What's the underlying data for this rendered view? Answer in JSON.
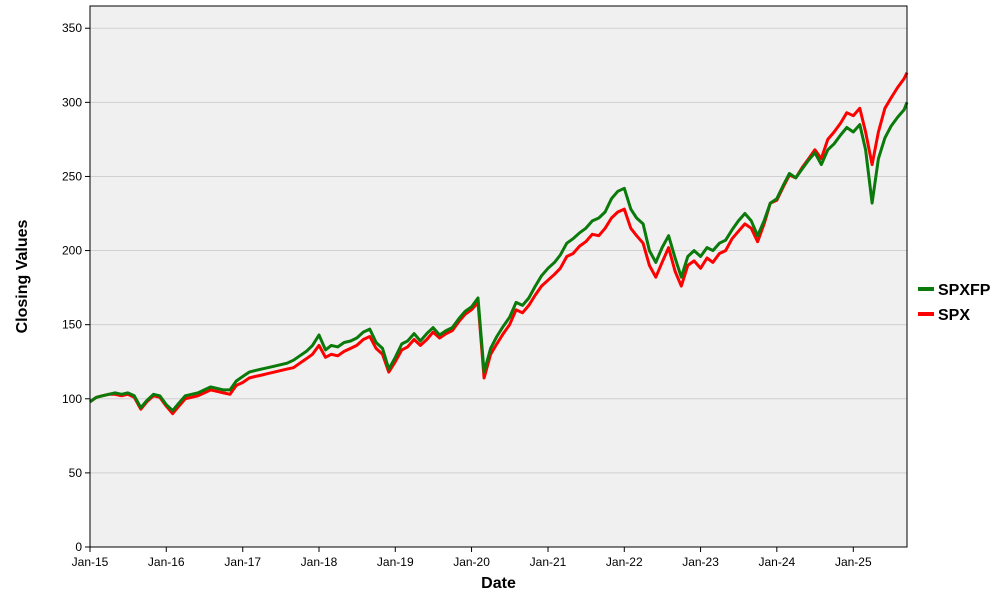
{
  "chart_data": {
    "type": "line",
    "title": "",
    "xlabel": "Date",
    "ylabel": "Closing Values",
    "ylim": [
      0,
      365
    ],
    "xlim": [
      "2015-01-01",
      "2025-09-15"
    ],
    "grid": "horizontal",
    "legend_position": "right",
    "x_ticks": [
      {
        "date": "2015-01-01",
        "label": "Jan-15"
      },
      {
        "date": "2016-01-01",
        "label": "Jan-16"
      },
      {
        "date": "2017-01-01",
        "label": "Jan-17"
      },
      {
        "date": "2018-01-01",
        "label": "Jan-18"
      },
      {
        "date": "2019-01-01",
        "label": "Jan-19"
      },
      {
        "date": "2020-01-01",
        "label": "Jan-20"
      },
      {
        "date": "2021-01-01",
        "label": "Jan-21"
      },
      {
        "date": "2022-01-01",
        "label": "Jan-22"
      },
      {
        "date": "2023-01-01",
        "label": "Jan-23"
      },
      {
        "date": "2024-01-01",
        "label": "Jan-24"
      },
      {
        "date": "2025-01-01",
        "label": "Jan-25"
      }
    ],
    "y_ticks": [
      {
        "value": 0,
        "label": "0"
      },
      {
        "value": 50,
        "label": "50"
      },
      {
        "value": 100,
        "label": "100"
      },
      {
        "value": 150,
        "label": "150"
      },
      {
        "value": 200,
        "label": "200"
      },
      {
        "value": 250,
        "label": "250"
      },
      {
        "value": 300,
        "label": "300"
      },
      {
        "value": 350,
        "label": "350"
      }
    ],
    "series": [
      {
        "name": "SPX",
        "color": "#ff0000",
        "points": [
          [
            "2015-01-01",
            98
          ],
          [
            "2015-02-01",
            101
          ],
          [
            "2015-03-01",
            102
          ],
          [
            "2015-04-01",
            103
          ],
          [
            "2015-05-01",
            103
          ],
          [
            "2015-06-01",
            102
          ],
          [
            "2015-07-01",
            103
          ],
          [
            "2015-08-01",
            101
          ],
          [
            "2015-09-01",
            93
          ],
          [
            "2015-10-01",
            98
          ],
          [
            "2015-11-01",
            102
          ],
          [
            "2015-12-01",
            101
          ],
          [
            "2016-01-01",
            95
          ],
          [
            "2016-02-01",
            90
          ],
          [
            "2016-03-01",
            95
          ],
          [
            "2016-04-01",
            100
          ],
          [
            "2016-05-01",
            101
          ],
          [
            "2016-06-01",
            102
          ],
          [
            "2016-07-01",
            104
          ],
          [
            "2016-08-01",
            106
          ],
          [
            "2016-09-01",
            105
          ],
          [
            "2016-10-01",
            104
          ],
          [
            "2016-11-01",
            103
          ],
          [
            "2016-12-01",
            109
          ],
          [
            "2017-01-01",
            111
          ],
          [
            "2017-02-01",
            114
          ],
          [
            "2017-03-01",
            115
          ],
          [
            "2017-04-01",
            116
          ],
          [
            "2017-05-01",
            117
          ],
          [
            "2017-06-01",
            118
          ],
          [
            "2017-07-01",
            119
          ],
          [
            "2017-08-01",
            120
          ],
          [
            "2017-09-01",
            121
          ],
          [
            "2017-10-01",
            124
          ],
          [
            "2017-11-01",
            127
          ],
          [
            "2017-12-01",
            130
          ],
          [
            "2018-01-01",
            136
          ],
          [
            "2018-02-01",
            128
          ],
          [
            "2018-03-01",
            130
          ],
          [
            "2018-04-01",
            129
          ],
          [
            "2018-05-01",
            132
          ],
          [
            "2018-06-01",
            134
          ],
          [
            "2018-07-01",
            136
          ],
          [
            "2018-08-01",
            140
          ],
          [
            "2018-09-01",
            142
          ],
          [
            "2018-10-01",
            134
          ],
          [
            "2018-11-01",
            130
          ],
          [
            "2018-12-01",
            118
          ],
          [
            "2019-01-01",
            125
          ],
          [
            "2019-02-01",
            133
          ],
          [
            "2019-03-01",
            135
          ],
          [
            "2019-04-01",
            140
          ],
          [
            "2019-05-01",
            136
          ],
          [
            "2019-06-01",
            140
          ],
          [
            "2019-07-01",
            145
          ],
          [
            "2019-08-01",
            141
          ],
          [
            "2019-09-01",
            144
          ],
          [
            "2019-10-01",
            146
          ],
          [
            "2019-11-01",
            152
          ],
          [
            "2019-12-01",
            157
          ],
          [
            "2020-01-01",
            160
          ],
          [
            "2020-02-01",
            165
          ],
          [
            "2020-03-01",
            114
          ],
          [
            "2020-04-01",
            130
          ],
          [
            "2020-05-01",
            137
          ],
          [
            "2020-06-01",
            144
          ],
          [
            "2020-07-01",
            150
          ],
          [
            "2020-08-01",
            160
          ],
          [
            "2020-09-01",
            158
          ],
          [
            "2020-10-01",
            163
          ],
          [
            "2020-11-01",
            170
          ],
          [
            "2020-12-01",
            176
          ],
          [
            "2021-01-01",
            180
          ],
          [
            "2021-02-01",
            184
          ],
          [
            "2021-03-01",
            188
          ],
          [
            "2021-04-01",
            196
          ],
          [
            "2021-05-01",
            198
          ],
          [
            "2021-06-01",
            203
          ],
          [
            "2021-07-01",
            206
          ],
          [
            "2021-08-01",
            211
          ],
          [
            "2021-09-01",
            210
          ],
          [
            "2021-10-01",
            215
          ],
          [
            "2021-11-01",
            222
          ],
          [
            "2021-12-01",
            226
          ],
          [
            "2022-01-01",
            228
          ],
          [
            "2022-02-01",
            215
          ],
          [
            "2022-03-01",
            210
          ],
          [
            "2022-04-01",
            205
          ],
          [
            "2022-05-01",
            190
          ],
          [
            "2022-06-01",
            182
          ],
          [
            "2022-07-01",
            192
          ],
          [
            "2022-08-01",
            202
          ],
          [
            "2022-09-01",
            186
          ],
          [
            "2022-10-01",
            176
          ],
          [
            "2022-11-01",
            190
          ],
          [
            "2022-12-01",
            193
          ],
          [
            "2023-01-01",
            188
          ],
          [
            "2023-02-01",
            195
          ],
          [
            "2023-03-01",
            192
          ],
          [
            "2023-04-01",
            198
          ],
          [
            "2023-05-01",
            200
          ],
          [
            "2023-06-01",
            208
          ],
          [
            "2023-07-01",
            213
          ],
          [
            "2023-08-01",
            218
          ],
          [
            "2023-09-01",
            215
          ],
          [
            "2023-10-01",
            206
          ],
          [
            "2023-11-01",
            218
          ],
          [
            "2023-12-01",
            232
          ],
          [
            "2024-01-01",
            234
          ],
          [
            "2024-02-01",
            243
          ],
          [
            "2024-03-01",
            251
          ],
          [
            "2024-04-01",
            249
          ],
          [
            "2024-05-01",
            256
          ],
          [
            "2024-06-01",
            262
          ],
          [
            "2024-07-01",
            268
          ],
          [
            "2024-08-01",
            262
          ],
          [
            "2024-09-01",
            275
          ],
          [
            "2024-10-01",
            280
          ],
          [
            "2024-11-01",
            286
          ],
          [
            "2024-12-01",
            293
          ],
          [
            "2025-01-01",
            291
          ],
          [
            "2025-02-01",
            296
          ],
          [
            "2025-03-01",
            280
          ],
          [
            "2025-04-01",
            258
          ],
          [
            "2025-05-01",
            280
          ],
          [
            "2025-06-01",
            296
          ],
          [
            "2025-07-01",
            303
          ],
          [
            "2025-08-01",
            310
          ],
          [
            "2025-09-01",
            316
          ],
          [
            "2025-09-15",
            320
          ]
        ]
      },
      {
        "name": "SPXFP",
        "color": "#0a7a0a",
        "points": [
          [
            "2015-01-01",
            98
          ],
          [
            "2015-02-01",
            101
          ],
          [
            "2015-03-01",
            102
          ],
          [
            "2015-04-01",
            103
          ],
          [
            "2015-05-01",
            104
          ],
          [
            "2015-06-01",
            103
          ],
          [
            "2015-07-01",
            104
          ],
          [
            "2015-08-01",
            102
          ],
          [
            "2015-09-01",
            94
          ],
          [
            "2015-10-01",
            99
          ],
          [
            "2015-11-01",
            103
          ],
          [
            "2015-12-01",
            102
          ],
          [
            "2016-01-01",
            96
          ],
          [
            "2016-02-01",
            92
          ],
          [
            "2016-03-01",
            97
          ],
          [
            "2016-04-01",
            102
          ],
          [
            "2016-05-01",
            103
          ],
          [
            "2016-06-01",
            104
          ],
          [
            "2016-07-01",
            106
          ],
          [
            "2016-08-01",
            108
          ],
          [
            "2016-09-01",
            107
          ],
          [
            "2016-10-01",
            106
          ],
          [
            "2016-11-01",
            106
          ],
          [
            "2016-12-01",
            112
          ],
          [
            "2017-01-01",
            115
          ],
          [
            "2017-02-01",
            118
          ],
          [
            "2017-03-01",
            119
          ],
          [
            "2017-04-01",
            120
          ],
          [
            "2017-05-01",
            121
          ],
          [
            "2017-06-01",
            122
          ],
          [
            "2017-07-01",
            123
          ],
          [
            "2017-08-01",
            124
          ],
          [
            "2017-09-01",
            126
          ],
          [
            "2017-10-01",
            129
          ],
          [
            "2017-11-01",
            132
          ],
          [
            "2017-12-01",
            136
          ],
          [
            "2018-01-01",
            143
          ],
          [
            "2018-02-01",
            133
          ],
          [
            "2018-03-01",
            136
          ],
          [
            "2018-04-01",
            135
          ],
          [
            "2018-05-01",
            138
          ],
          [
            "2018-06-01",
            139
          ],
          [
            "2018-07-01",
            141
          ],
          [
            "2018-08-01",
            145
          ],
          [
            "2018-09-01",
            147
          ],
          [
            "2018-10-01",
            138
          ],
          [
            "2018-11-01",
            134
          ],
          [
            "2018-12-01",
            120
          ],
          [
            "2019-01-01",
            128
          ],
          [
            "2019-02-01",
            137
          ],
          [
            "2019-03-01",
            139
          ],
          [
            "2019-04-01",
            144
          ],
          [
            "2019-05-01",
            139
          ],
          [
            "2019-06-01",
            144
          ],
          [
            "2019-07-01",
            148
          ],
          [
            "2019-08-01",
            143
          ],
          [
            "2019-09-01",
            146
          ],
          [
            "2019-10-01",
            148
          ],
          [
            "2019-11-01",
            154
          ],
          [
            "2019-12-01",
            159
          ],
          [
            "2020-01-01",
            162
          ],
          [
            "2020-02-01",
            168
          ],
          [
            "2020-03-01",
            118
          ],
          [
            "2020-04-01",
            134
          ],
          [
            "2020-05-01",
            142
          ],
          [
            "2020-06-01",
            149
          ],
          [
            "2020-07-01",
            155
          ],
          [
            "2020-08-01",
            165
          ],
          [
            "2020-09-01",
            163
          ],
          [
            "2020-10-01",
            168
          ],
          [
            "2020-11-01",
            176
          ],
          [
            "2020-12-01",
            183
          ],
          [
            "2021-01-01",
            188
          ],
          [
            "2021-02-01",
            192
          ],
          [
            "2021-03-01",
            197
          ],
          [
            "2021-04-01",
            205
          ],
          [
            "2021-05-01",
            208
          ],
          [
            "2021-06-01",
            212
          ],
          [
            "2021-07-01",
            215
          ],
          [
            "2021-08-01",
            220
          ],
          [
            "2021-09-01",
            222
          ],
          [
            "2021-10-01",
            226
          ],
          [
            "2021-11-01",
            235
          ],
          [
            "2021-12-01",
            240
          ],
          [
            "2022-01-01",
            242
          ],
          [
            "2022-02-01",
            228
          ],
          [
            "2022-03-01",
            222
          ],
          [
            "2022-04-01",
            218
          ],
          [
            "2022-05-01",
            200
          ],
          [
            "2022-06-01",
            192
          ],
          [
            "2022-07-01",
            202
          ],
          [
            "2022-08-01",
            210
          ],
          [
            "2022-09-01",
            195
          ],
          [
            "2022-10-01",
            182
          ],
          [
            "2022-11-01",
            196
          ],
          [
            "2022-12-01",
            200
          ],
          [
            "2023-01-01",
            196
          ],
          [
            "2023-02-01",
            202
          ],
          [
            "2023-03-01",
            200
          ],
          [
            "2023-04-01",
            205
          ],
          [
            "2023-05-01",
            207
          ],
          [
            "2023-06-01",
            214
          ],
          [
            "2023-07-01",
            220
          ],
          [
            "2023-08-01",
            225
          ],
          [
            "2023-09-01",
            220
          ],
          [
            "2023-10-01",
            210
          ],
          [
            "2023-11-01",
            220
          ],
          [
            "2023-12-01",
            232
          ],
          [
            "2024-01-01",
            235
          ],
          [
            "2024-02-01",
            244
          ],
          [
            "2024-03-01",
            252
          ],
          [
            "2024-04-01",
            249
          ],
          [
            "2024-05-01",
            255
          ],
          [
            "2024-06-01",
            261
          ],
          [
            "2024-07-01",
            266
          ],
          [
            "2024-08-01",
            258
          ],
          [
            "2024-09-01",
            268
          ],
          [
            "2024-10-01",
            272
          ],
          [
            "2024-11-01",
            278
          ],
          [
            "2024-12-01",
            283
          ],
          [
            "2025-01-01",
            280
          ],
          [
            "2025-02-01",
            285
          ],
          [
            "2025-03-01",
            268
          ],
          [
            "2025-04-01",
            232
          ],
          [
            "2025-05-01",
            262
          ],
          [
            "2025-06-01",
            276
          ],
          [
            "2025-07-01",
            284
          ],
          [
            "2025-08-01",
            290
          ],
          [
            "2025-09-01",
            295
          ],
          [
            "2025-09-15",
            300
          ]
        ]
      }
    ],
    "legend": [
      {
        "name": "SPXFP",
        "color": "#0a7a0a"
      },
      {
        "name": "SPX",
        "color": "#ff0000"
      }
    ],
    "colors": {
      "plot_background": "#f0f0f0",
      "gridline": "#d0d0d0",
      "frame": "#000000"
    }
  }
}
